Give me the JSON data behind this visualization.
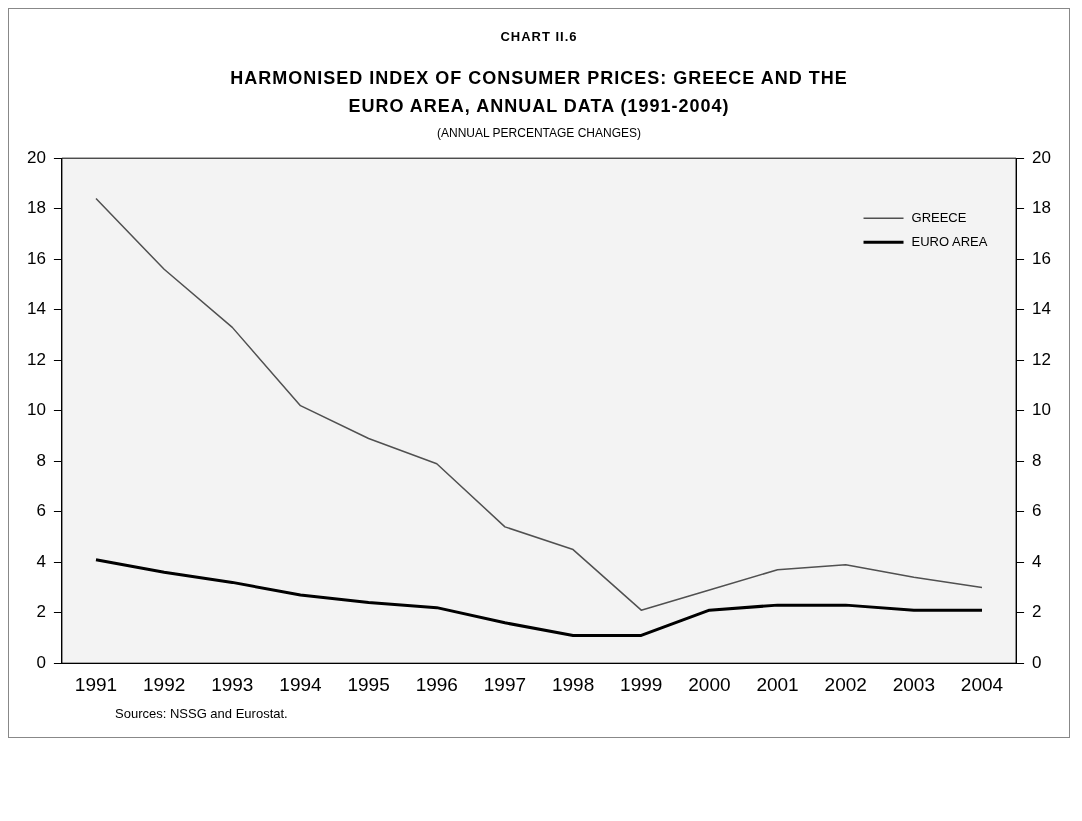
{
  "chart_data": {
    "type": "line",
    "title": "HARMONISED INDEX OF CONSUMER PRICES: GREECE AND THE EURO AREA, ANNUAL DATA (1991-2004)",
    "subtitle": "(ANNUAL PERCENTAGE CHANGES)",
    "annotations": [
      "CHART II.6",
      "Sources: NSSG and Eurostat."
    ],
    "categories": [
      "1991",
      "1992",
      "1993",
      "1994",
      "1995",
      "1996",
      "1997",
      "1998",
      "1999",
      "2000",
      "2001",
      "2002",
      "2003",
      "2004"
    ],
    "series": [
      {
        "name": "GREECE",
        "color": "#505050",
        "values": [
          18.4,
          15.6,
          13.3,
          10.2,
          8.9,
          7.9,
          5.4,
          4.5,
          2.1,
          2.9,
          3.7,
          3.9,
          3.4,
          3.0
        ]
      },
      {
        "name": "EURO AREA",
        "color": "#000000",
        "values": [
          4.1,
          3.6,
          3.2,
          2.7,
          2.4,
          2.2,
          1.6,
          1.1,
          1.1,
          2.1,
          2.3,
          2.3,
          2.1,
          2.1
        ]
      }
    ],
    "ylim": [
      0,
      20
    ],
    "yticks": [
      0,
      2,
      4,
      6,
      8,
      10,
      12,
      14,
      16,
      18,
      20
    ],
    "y2lim": [
      0,
      20
    ],
    "y2ticks": [
      0,
      2,
      4,
      6,
      8,
      10,
      12,
      14,
      16,
      18,
      20
    ],
    "grid": false,
    "legend": "top right",
    "marker": "none",
    "line_style": "solid"
  }
}
